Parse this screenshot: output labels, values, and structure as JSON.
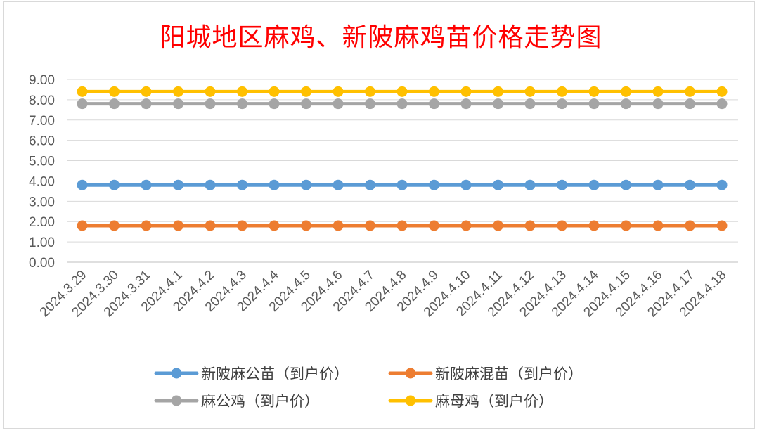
{
  "chart_data": {
    "type": "line",
    "title": "阳城地区麻鸡、新陂麻鸡苗价格走势图",
    "xlabel": "",
    "ylabel": "",
    "ylim": [
      0,
      9
    ],
    "yticks": [
      "0.00",
      "1.00",
      "2.00",
      "3.00",
      "4.00",
      "5.00",
      "6.00",
      "7.00",
      "8.00",
      "9.00"
    ],
    "grid": true,
    "legend_position": "bottom",
    "categories": [
      "2024.3.29",
      "2024.3.30",
      "2024.3.31",
      "2024.4.1",
      "2024.4.2",
      "2024.4.3",
      "2024.4.4",
      "2024.4.5",
      "2024.4.6",
      "2024.4.7",
      "2024.4.8",
      "2024.4.9",
      "2024.4.10",
      "2024.4.11",
      "2024.4.12",
      "2024.4.13",
      "2024.4.14",
      "2024.4.15",
      "2024.4.16",
      "2024.4.17",
      "2024.4.18"
    ],
    "series": [
      {
        "name": "新陂麻公苗（到户价）",
        "color": "#5b9bd5",
        "values": [
          3.8,
          3.8,
          3.8,
          3.8,
          3.8,
          3.8,
          3.8,
          3.8,
          3.8,
          3.8,
          3.8,
          3.8,
          3.8,
          3.8,
          3.8,
          3.8,
          3.8,
          3.8,
          3.8,
          3.8,
          3.8
        ]
      },
      {
        "name": "新陂麻混苗（到户价）",
        "color": "#ed7d31",
        "values": [
          1.8,
          1.8,
          1.8,
          1.8,
          1.8,
          1.8,
          1.8,
          1.8,
          1.8,
          1.8,
          1.8,
          1.8,
          1.8,
          1.8,
          1.8,
          1.8,
          1.8,
          1.8,
          1.8,
          1.8,
          1.8
        ]
      },
      {
        "name": "麻公鸡（到户价）",
        "color": "#a5a5a5",
        "values": [
          7.8,
          7.8,
          7.8,
          7.8,
          7.8,
          7.8,
          7.8,
          7.8,
          7.8,
          7.8,
          7.8,
          7.8,
          7.8,
          7.8,
          7.8,
          7.8,
          7.8,
          7.8,
          7.8,
          7.8,
          7.8
        ]
      },
      {
        "name": "麻母鸡（到户价）",
        "color": "#ffc000",
        "values": [
          8.4,
          8.4,
          8.4,
          8.4,
          8.4,
          8.4,
          8.4,
          8.4,
          8.4,
          8.4,
          8.4,
          8.4,
          8.4,
          8.4,
          8.4,
          8.4,
          8.4,
          8.4,
          8.4,
          8.4,
          8.4
        ]
      }
    ]
  }
}
